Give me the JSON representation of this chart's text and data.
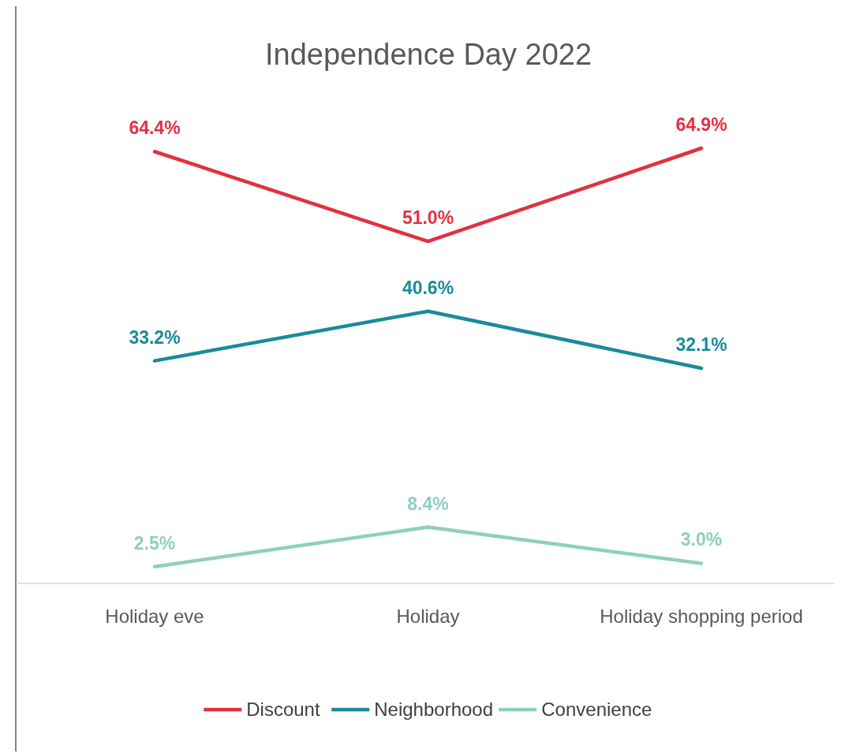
{
  "chart_data": {
    "type": "line",
    "title": "Independence Day 2022",
    "categories": [
      "Holiday eve",
      "Holiday",
      "Holiday shopping period"
    ],
    "series": [
      {
        "name": "Discount",
        "color": "#e3303f",
        "values": [
          64.4,
          51.0,
          64.9
        ],
        "value_labels": [
          "64.4%",
          "51.0%",
          "64.9%"
        ]
      },
      {
        "name": "Neighborhood",
        "color": "#1b8a9c",
        "values": [
          33.2,
          40.6,
          32.1
        ],
        "value_labels": [
          "33.2%",
          "40.6%",
          "32.1%"
        ]
      },
      {
        "name": "Convenience",
        "color": "#8ecfbf",
        "values": [
          2.5,
          8.4,
          3.0
        ],
        "value_labels": [
          "2.5%",
          "8.4%",
          "3.0%"
        ]
      }
    ],
    "legend": "bottom",
    "marker": "none",
    "line_style": "solid"
  }
}
